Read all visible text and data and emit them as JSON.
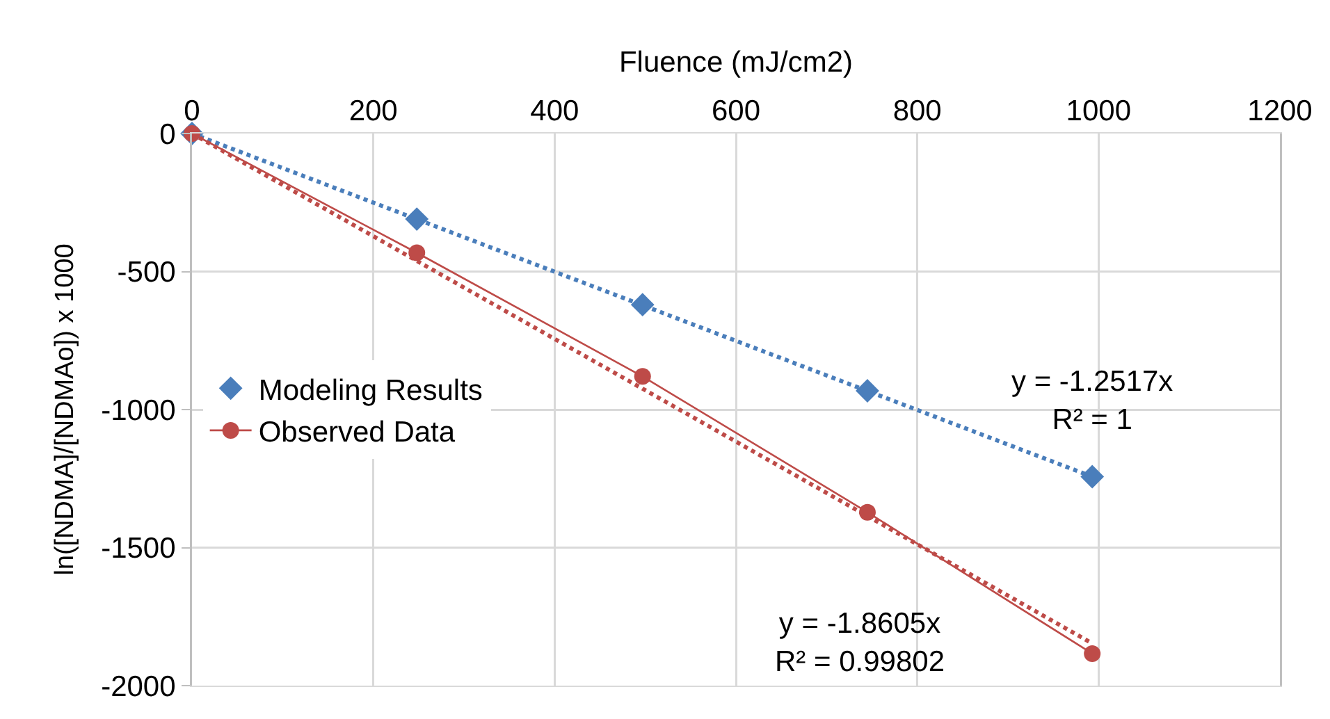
{
  "chart_data": {
    "type": "scatter",
    "xlabel": "Fluence (mJ/cm2)",
    "ylabel": "ln([NDMA]/[NDMAo]) x 1000",
    "xlim": [
      0,
      1200
    ],
    "xticks": [
      0,
      200,
      400,
      600,
      800,
      1000,
      1200
    ],
    "ylim": [
      -2000,
      0
    ],
    "yticks": [
      -2000,
      -1500,
      -1000,
      -500,
      0
    ],
    "grid": true,
    "legend": "left",
    "series": [
      {
        "name": "Modeling Results",
        "marker": "diamond",
        "color": "#4a7ebb",
        "x": [
          0,
          248,
          497,
          745,
          993
        ],
        "values": [
          0,
          -310,
          -620,
          -932,
          -1243
        ]
      },
      {
        "name": "Observed Data",
        "type": "line",
        "marker": "circle",
        "line_style": "solid",
        "color": "#be4b48",
        "x": [
          0,
          248,
          497,
          745,
          993
        ],
        "values": [
          0,
          -432,
          -880,
          -1372,
          -1884
        ]
      },
      {
        "type": "line",
        "marker": "none",
        "line_style": "dotted",
        "color": "#4a7ebb",
        "x": [
          0,
          993
        ],
        "values": [
          0,
          -1243
        ]
      },
      {
        "type": "line",
        "marker": "none",
        "line_style": "dotted",
        "color": "#be4b48",
        "x": [
          0,
          993
        ],
        "values": [
          0,
          -1847
        ]
      }
    ],
    "annotations": [
      "y = -1.2517x\nR² = 1",
      "y = -1.8605x\nR² = 0.99802"
    ]
  }
}
